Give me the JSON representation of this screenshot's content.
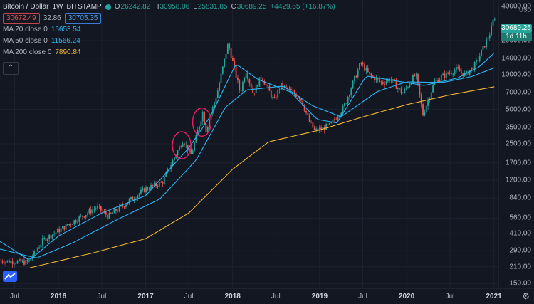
{
  "header": {
    "symbol": "Bitcoin / Dollar",
    "interval": "1W",
    "exchange": "BITSTAMP",
    "ohlc": {
      "open_label": "O",
      "open": "26242.82",
      "high_label": "H",
      "high": "30958.06",
      "low_label": "L",
      "low": "25831.85",
      "close_label": "C",
      "close": "30689.25",
      "change": "+4429.65 (+16.87%)"
    },
    "bid": "30672.49",
    "spread": "32.86",
    "ask": "30705.35"
  },
  "indicators": [
    {
      "label": "MA 20 close 0",
      "value": "15653.54",
      "color": "#29b6f6"
    },
    {
      "label": "MA 50 close 0",
      "value": "11566.24",
      "color": "#29b6f6"
    },
    {
      "label": "MA 200 close 0",
      "value": "7890.84",
      "color": "#f5b731"
    }
  ],
  "price_axis": {
    "currency_top": "USD",
    "ticks": [
      "40000.00",
      "20000.00",
      "14000.00",
      "10000.00",
      "7000.00",
      "5000.00",
      "3500.00",
      "2500.00",
      "1700.00",
      "1200.00",
      "840.00",
      "560.00",
      "410.00",
      "290.00",
      "210.00",
      "150.00"
    ],
    "last_price": "30689.25",
    "countdown": "1d 11h"
  },
  "time_axis": {
    "ticks": [
      {
        "label": "Jul",
        "year": false
      },
      {
        "label": "2016",
        "year": true
      },
      {
        "label": "Jul",
        "year": false
      },
      {
        "label": "2017",
        "year": true
      },
      {
        "label": "Jul",
        "year": false
      },
      {
        "label": "2018",
        "year": true
      },
      {
        "label": "Jul",
        "year": false
      },
      {
        "label": "2019",
        "year": true
      },
      {
        "label": "Jul",
        "year": false
      },
      {
        "label": "2020",
        "year": true
      },
      {
        "label": "Jul",
        "year": false
      },
      {
        "label": "2021",
        "year": true
      }
    ]
  },
  "colors": {
    "up": "#26a69a",
    "down": "#ef5350",
    "background": "#131722",
    "grid": "#1e2230",
    "highlight": "#e91e63"
  },
  "chart_data": {
    "type": "candlestick",
    "scale": "log",
    "ylim": [
      140,
      44000
    ],
    "xlim": [
      "2015-05-01",
      "2021-01-20"
    ],
    "anchor_points": [
      {
        "date": "2015-05-01",
        "price": 237
      },
      {
        "date": "2015-09-01",
        "price": 230
      },
      {
        "date": "2015-11-01",
        "price": 360
      },
      {
        "date": "2016-01-01",
        "price": 430
      },
      {
        "date": "2016-06-15",
        "price": 700
      },
      {
        "date": "2016-08-01",
        "price": 580
      },
      {
        "date": "2017-01-01",
        "price": 1000
      },
      {
        "date": "2017-03-15",
        "price": 1150
      },
      {
        "date": "2017-06-10",
        "price": 2700
      },
      {
        "date": "2017-07-15",
        "price": 2000
      },
      {
        "date": "2017-09-01",
        "price": 4700
      },
      {
        "date": "2017-09-15",
        "price": 3300
      },
      {
        "date": "2017-11-01",
        "price": 7000
      },
      {
        "date": "2017-12-17",
        "price": 19000
      },
      {
        "date": "2018-02-05",
        "price": 7000
      },
      {
        "date": "2018-03-01",
        "price": 11000
      },
      {
        "date": "2018-04-01",
        "price": 6900
      },
      {
        "date": "2018-05-05",
        "price": 9800
      },
      {
        "date": "2018-06-28",
        "price": 5900
      },
      {
        "date": "2018-07-25",
        "price": 8200
      },
      {
        "date": "2018-10-15",
        "price": 6400
      },
      {
        "date": "2018-11-25",
        "price": 3800
      },
      {
        "date": "2018-12-15",
        "price": 3250
      },
      {
        "date": "2019-02-15",
        "price": 3600
      },
      {
        "date": "2019-04-15",
        "price": 5200
      },
      {
        "date": "2019-06-26",
        "price": 12800
      },
      {
        "date": "2019-08-01",
        "price": 10000
      },
      {
        "date": "2019-09-24",
        "price": 8500
      },
      {
        "date": "2019-10-28",
        "price": 9300
      },
      {
        "date": "2019-12-18",
        "price": 6900
      },
      {
        "date": "2020-02-12",
        "price": 10200
      },
      {
        "date": "2020-03-13",
        "price": 4500
      },
      {
        "date": "2020-04-30",
        "price": 8700
      },
      {
        "date": "2020-06-01",
        "price": 9700
      },
      {
        "date": "2020-07-30",
        "price": 11200
      },
      {
        "date": "2020-09-07",
        "price": 10000
      },
      {
        "date": "2020-10-20",
        "price": 12500
      },
      {
        "date": "2020-11-25",
        "price": 18000
      },
      {
        "date": "2020-12-20",
        "price": 23500
      },
      {
        "date": "2021-01-03",
        "price": 30689
      }
    ],
    "moving_averages": [
      {
        "name": "MA 20 close 0",
        "color": "#29b6f6",
        "points": [
          {
            "date": "2015-05-01",
            "price": 350
          },
          {
            "date": "2015-09-01",
            "price": 240
          },
          {
            "date": "2016-01-01",
            "price": 390
          },
          {
            "date": "2016-07-01",
            "price": 620
          },
          {
            "date": "2017-01-01",
            "price": 880
          },
          {
            "date": "2017-07-01",
            "price": 2300
          },
          {
            "date": "2017-10-01",
            "price": 4400
          },
          {
            "date": "2018-01-15",
            "price": 12500
          },
          {
            "date": "2018-04-15",
            "price": 9200
          },
          {
            "date": "2018-09-01",
            "price": 7100
          },
          {
            "date": "2018-12-20",
            "price": 4100
          },
          {
            "date": "2019-03-15",
            "price": 3800
          },
          {
            "date": "2019-07-15",
            "price": 9800
          },
          {
            "date": "2019-11-15",
            "price": 8900
          },
          {
            "date": "2020-03-15",
            "price": 8100
          },
          {
            "date": "2020-08-01",
            "price": 9400
          },
          {
            "date": "2020-11-01",
            "price": 11800
          },
          {
            "date": "2021-01-03",
            "price": 15653
          }
        ]
      },
      {
        "name": "MA 50 close 0",
        "color": "#29b6f6",
        "points": [
          {
            "date": "2015-05-01",
            "price": 300
          },
          {
            "date": "2015-10-01",
            "price": 250
          },
          {
            "date": "2016-03-01",
            "price": 340
          },
          {
            "date": "2016-09-01",
            "price": 540
          },
          {
            "date": "2017-03-01",
            "price": 820
          },
          {
            "date": "2017-08-01",
            "price": 1800
          },
          {
            "date": "2017-12-01",
            "price": 5200
          },
          {
            "date": "2018-03-01",
            "price": 7400
          },
          {
            "date": "2018-08-01",
            "price": 8000
          },
          {
            "date": "2018-12-01",
            "price": 5400
          },
          {
            "date": "2019-04-01",
            "price": 4300
          },
          {
            "date": "2019-09-01",
            "price": 7200
          },
          {
            "date": "2020-01-01",
            "price": 8700
          },
          {
            "date": "2020-06-01",
            "price": 8600
          },
          {
            "date": "2020-10-01",
            "price": 9700
          },
          {
            "date": "2021-01-03",
            "price": 11566
          }
        ]
      },
      {
        "name": "MA 200 close 0",
        "color": "#f5b731",
        "points": [
          {
            "date": "2015-09-01",
            "price": 205
          },
          {
            "date": "2016-06-01",
            "price": 280
          },
          {
            "date": "2017-01-01",
            "price": 370
          },
          {
            "date": "2017-07-01",
            "price": 620
          },
          {
            "date": "2018-01-01",
            "price": 1500
          },
          {
            "date": "2018-06-01",
            "price": 2600
          },
          {
            "date": "2019-01-01",
            "price": 3300
          },
          {
            "date": "2019-07-01",
            "price": 4300
          },
          {
            "date": "2020-01-01",
            "price": 5500
          },
          {
            "date": "2020-07-01",
            "price": 6700
          },
          {
            "date": "2021-01-03",
            "price": 7890
          }
        ]
      }
    ],
    "highlight_circles": [
      {
        "date": "2017-06-01",
        "price_low": 1900,
        "price_high": 3100
      },
      {
        "date": "2017-08-25",
        "price_low": 3000,
        "price_high": 5000
      }
    ]
  }
}
